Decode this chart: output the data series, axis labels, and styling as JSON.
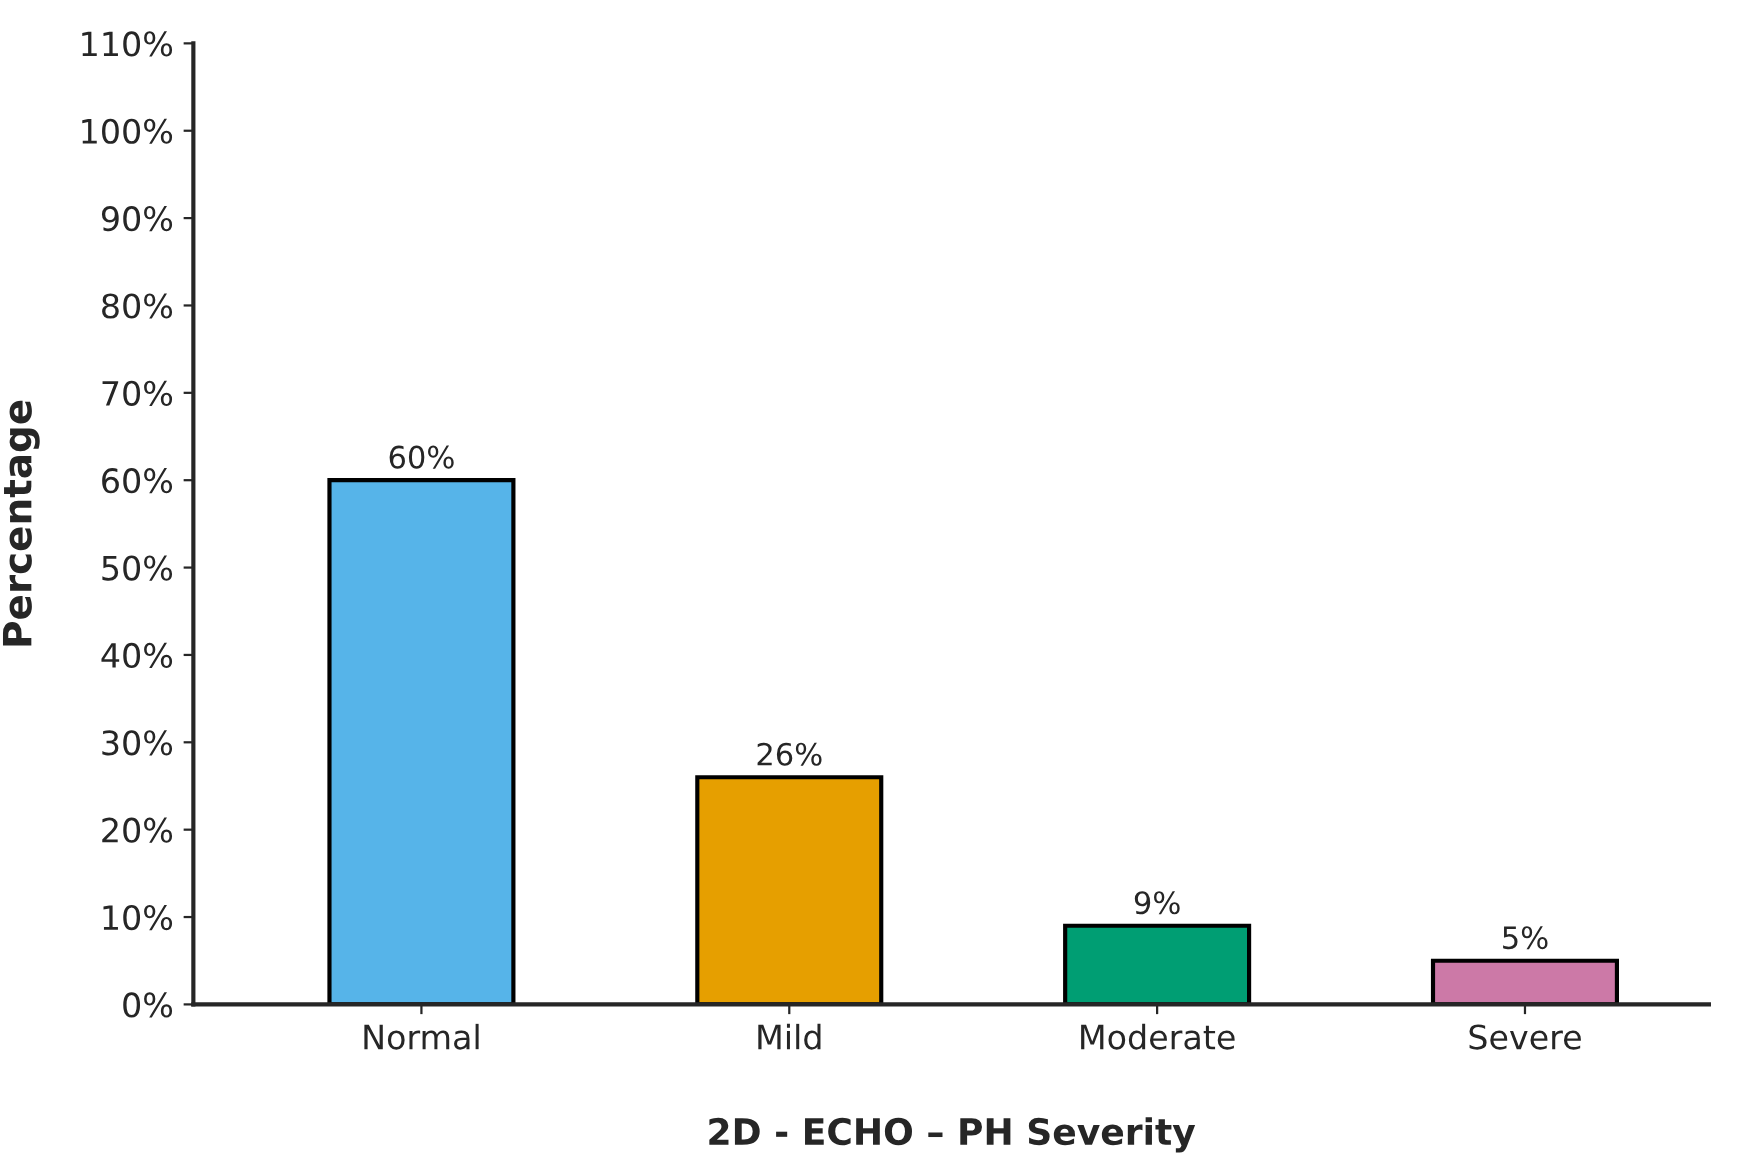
{
  "chart_data": {
    "type": "bar",
    "xlabel": "2D - ECHO – PH Severity",
    "ylabel": "Percentage",
    "categories": [
      "Normal",
      "Mild",
      "Moderate",
      "Severe"
    ],
    "values": [
      60,
      26,
      9,
      5
    ],
    "colors": [
      "#56b4e9",
      "#e69f00",
      "#009e73",
      "#cc79a7"
    ],
    "value_labels": [
      "60%",
      "26%",
      "9%",
      "5%"
    ],
    "ylim": [
      0,
      110
    ],
    "yticks": [
      {
        "value": 0,
        "label": "0%"
      },
      {
        "value": 10,
        "label": "10%"
      },
      {
        "value": 20,
        "label": "20%"
      },
      {
        "value": 30,
        "label": "30%"
      },
      {
        "value": 40,
        "label": "40%"
      },
      {
        "value": 50,
        "label": "50%"
      },
      {
        "value": 60,
        "label": "60%"
      },
      {
        "value": 70,
        "label": "70%"
      },
      {
        "value": 80,
        "label": "80%"
      },
      {
        "value": 90,
        "label": "90%"
      },
      {
        "value": 100,
        "label": "100%"
      },
      {
        "value": 110,
        "label": "110%"
      }
    ],
    "grid": false,
    "legend": false
  }
}
